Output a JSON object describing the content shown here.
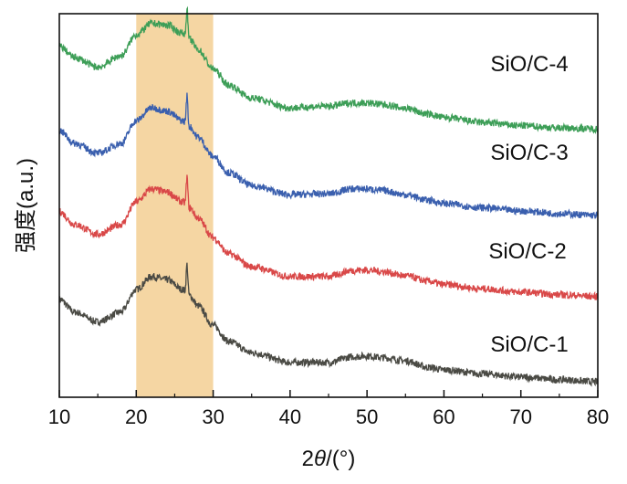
{
  "chart_data": {
    "type": "line",
    "title": "",
    "xlabel_main": "2",
    "xlabel_italic": "θ",
    "xlabel_unit": "/(°)",
    "ylabel": "强度(a.u.)",
    "xlim": [
      10,
      80
    ],
    "x_ticks": [
      10,
      20,
      30,
      40,
      50,
      60,
      70,
      80
    ],
    "y_ticks_shown": false,
    "grid": false,
    "highlight_band": {
      "x_range": [
        20,
        30
      ],
      "color": "#f5d6a3"
    },
    "series": [
      {
        "name": "SiO/C-1",
        "color": "#4a4a44",
        "offset": 0,
        "x": [
          10,
          12,
          15,
          18,
          20,
          22,
          24,
          26,
          27,
          28,
          30,
          32,
          35,
          40,
          45,
          48,
          50,
          52,
          55,
          58,
          60,
          65,
          70,
          75,
          80
        ],
        "y": [
          2.6,
          2.2,
          1.9,
          2.2,
          2.9,
          3.3,
          3.2,
          2.9,
          2.7,
          2.4,
          1.8,
          1.3,
          0.95,
          0.65,
          0.65,
          0.82,
          0.85,
          0.8,
          0.7,
          0.5,
          0.42,
          0.3,
          0.2,
          0.12,
          0.05
        ]
      },
      {
        "name": "SiO/C-2",
        "color": "#d94848",
        "offset": 2.6,
        "x": [
          10,
          12,
          15,
          18,
          20,
          22,
          24,
          26,
          27,
          28,
          30,
          32,
          35,
          40,
          45,
          48,
          50,
          52,
          55,
          58,
          60,
          65,
          70,
          75,
          80
        ],
        "y": [
          2.7,
          2.3,
          2.0,
          2.3,
          3.0,
          3.4,
          3.3,
          3.0,
          2.8,
          2.5,
          1.9,
          1.4,
          1.0,
          0.7,
          0.7,
          0.88,
          0.9,
          0.85,
          0.72,
          0.55,
          0.45,
          0.32,
          0.22,
          0.14,
          0.08
        ]
      },
      {
        "name": "SiO/C-3",
        "color": "#3a5fae",
        "offset": 5.1,
        "x": [
          10,
          12,
          15,
          18,
          20,
          22,
          24,
          26,
          27,
          28,
          30,
          32,
          35,
          40,
          45,
          48,
          50,
          52,
          55,
          58,
          60,
          65,
          70,
          75,
          80
        ],
        "y": [
          2.7,
          2.3,
          2.0,
          2.3,
          3.0,
          3.4,
          3.3,
          3.0,
          2.8,
          2.5,
          1.9,
          1.4,
          1.0,
          0.72,
          0.75,
          0.9,
          0.9,
          0.85,
          0.72,
          0.55,
          0.45,
          0.32,
          0.22,
          0.14,
          0.08
        ]
      },
      {
        "name": "SiO/C-4",
        "color": "#3d9e57",
        "offset": 7.6,
        "x": [
          10,
          12,
          15,
          18,
          20,
          22,
          24,
          26,
          27,
          28,
          30,
          32,
          35,
          40,
          45,
          48,
          50,
          52,
          55,
          58,
          60,
          65,
          70,
          75,
          80
        ],
        "y": [
          2.8,
          2.45,
          2.15,
          2.5,
          3.15,
          3.5,
          3.45,
          3.2,
          3.0,
          2.7,
          2.1,
          1.6,
          1.2,
          0.9,
          0.95,
          1.05,
          1.05,
          1.0,
          0.88,
          0.7,
          0.6,
          0.45,
          0.35,
          0.28,
          0.25
        ]
      }
    ]
  }
}
